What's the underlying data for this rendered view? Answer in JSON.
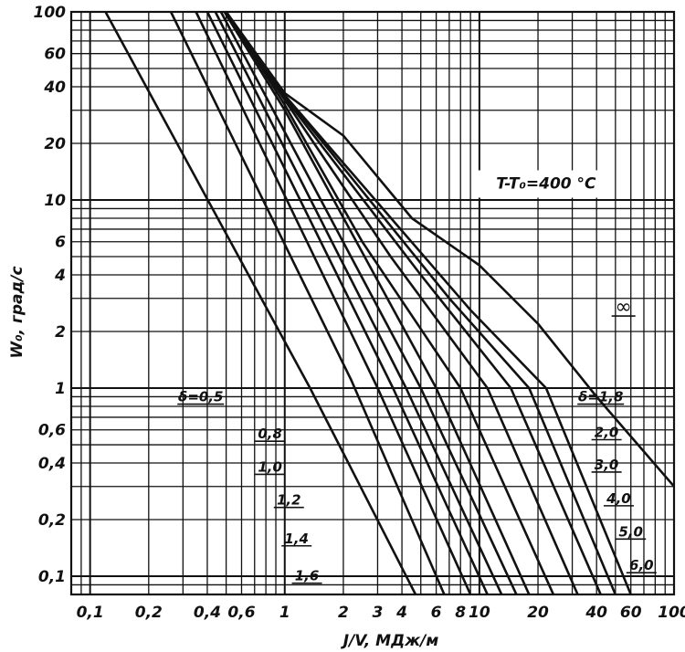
{
  "chart_data": {
    "type": "line",
    "title": "",
    "xlabel": "J/V, МДж/м",
    "ylabel": "W₀, град/с",
    "xscale": "log",
    "yscale": "log",
    "xlim": [
      0.08,
      100
    ],
    "ylim": [
      0.08,
      100
    ],
    "grid": true,
    "annotation": "T-T₀=400 °C",
    "x_ticks": [
      {
        "v": 0.1,
        "label": "0,1"
      },
      {
        "v": 0.2,
        "label": "0,2"
      },
      {
        "v": 0.4,
        "label": "0,4"
      },
      {
        "v": 0.6,
        "label": "0,6"
      },
      {
        "v": 1,
        "label": "1"
      },
      {
        "v": 2,
        "label": "2"
      },
      {
        "v": 3,
        "label": "3"
      },
      {
        "v": 4,
        "label": "4"
      },
      {
        "v": 6,
        "label": "6"
      },
      {
        "v": 8,
        "label": "8"
      },
      {
        "v": 10,
        "label": "10"
      },
      {
        "v": 20,
        "label": "20"
      },
      {
        "v": 40,
        "label": "40"
      },
      {
        "v": 60,
        "label": "60"
      },
      {
        "v": 100,
        "label": "100"
      }
    ],
    "y_ticks": [
      {
        "v": 0.1,
        "label": "0,1"
      },
      {
        "v": 0.2,
        "label": "0,2"
      },
      {
        "v": 0.4,
        "label": "0,4"
      },
      {
        "v": 0.6,
        "label": "0,6"
      },
      {
        "v": 1,
        "label": "1"
      },
      {
        "v": 2,
        "label": "2"
      },
      {
        "v": 4,
        "label": "4"
      },
      {
        "v": 6,
        "label": "6"
      },
      {
        "v": 10,
        "label": "10"
      },
      {
        "v": 20,
        "label": "20"
      },
      {
        "v": 40,
        "label": "40"
      },
      {
        "v": 60,
        "label": "60"
      },
      {
        "v": 100,
        "label": "100"
      }
    ],
    "series": [
      {
        "name": "δ=0,5",
        "label_pos": [
          0.37,
          0.85
        ],
        "points": [
          [
            0.12,
            100
          ],
          [
            1.35,
            1.0
          ],
          [
            4.7,
            0.08
          ]
        ]
      },
      {
        "name": "0,8",
        "label_pos": [
          0.84,
          0.54
        ],
        "points": [
          [
            0.26,
            100
          ],
          [
            2.2,
            1.1
          ],
          [
            6.6,
            0.08
          ]
        ]
      },
      {
        "name": "1,0",
        "label_pos": [
          0.84,
          0.36
        ],
        "points": [
          [
            0.35,
            100
          ],
          [
            3.0,
            1.0
          ],
          [
            9.0,
            0.08
          ]
        ]
      },
      {
        "name": "1,2",
        "label_pos": [
          1.05,
          0.24
        ],
        "points": [
          [
            0.4,
            100
          ],
          [
            3.6,
            1.0
          ],
          [
            11.0,
            0.08
          ]
        ]
      },
      {
        "name": "1,4",
        "label_pos": [
          1.15,
          0.15
        ],
        "points": [
          [
            0.44,
            100
          ],
          [
            4.2,
            1.0
          ],
          [
            13.0,
            0.08
          ]
        ]
      },
      {
        "name": "1,6",
        "label_pos": [
          1.3,
          0.095
        ],
        "points": [
          [
            0.47,
            100
          ],
          [
            5.0,
            1.0
          ],
          [
            15.5,
            0.08
          ]
        ]
      },
      {
        "name": "δ=1,8",
        "label_pos": [
          42,
          0.85
        ],
        "points": [
          [
            0.49,
            100
          ],
          [
            1.0,
            30
          ],
          [
            6.0,
            1.0
          ],
          [
            18.0,
            0.08
          ]
        ]
      },
      {
        "name": "2,0",
        "label_pos": [
          45,
          0.55
        ],
        "points": [
          [
            0.5,
            100
          ],
          [
            1.0,
            32
          ],
          [
            2.5,
            6.0
          ],
          [
            8.0,
            1.0
          ],
          [
            24.0,
            0.08
          ]
        ]
      },
      {
        "name": "3,0",
        "label_pos": [
          45,
          0.37
        ],
        "points": [
          [
            0.5,
            100
          ],
          [
            1.0,
            34
          ],
          [
            3.5,
            5.0
          ],
          [
            11.0,
            1.0
          ],
          [
            32.0,
            0.08
          ]
        ]
      },
      {
        "name": "4,0",
        "label_pos": [
          52,
          0.245
        ],
        "points": [
          [
            0.5,
            100
          ],
          [
            1.0,
            35
          ],
          [
            5.0,
            4.0
          ],
          [
            14.5,
            1.0
          ],
          [
            42.0,
            0.08
          ]
        ]
      },
      {
        "name": "5,0",
        "label_pos": [
          60,
          0.163
        ],
        "points": [
          [
            0.5,
            100
          ],
          [
            1.0,
            36
          ],
          [
            7.0,
            3.0
          ],
          [
            18.0,
            1.0
          ],
          [
            50.0,
            0.08
          ]
        ]
      },
      {
        "name": "6,0",
        "label_pos": [
          68,
          0.108
        ],
        "points": [
          [
            0.5,
            100
          ],
          [
            1.0,
            36
          ],
          [
            9.0,
            2.6
          ],
          [
            22.0,
            1.0
          ],
          [
            60.0,
            0.08
          ]
        ]
      },
      {
        "name": "∞",
        "label_pos": [
          55,
          2.5
        ],
        "points": [
          [
            0.5,
            100
          ],
          [
            1.0,
            37
          ],
          [
            2.0,
            22
          ],
          [
            4.5,
            8.0
          ],
          [
            10.0,
            4.5
          ],
          [
            20.0,
            2.2
          ],
          [
            40.0,
            0.9
          ],
          [
            100.0,
            0.3
          ]
        ]
      }
    ]
  }
}
